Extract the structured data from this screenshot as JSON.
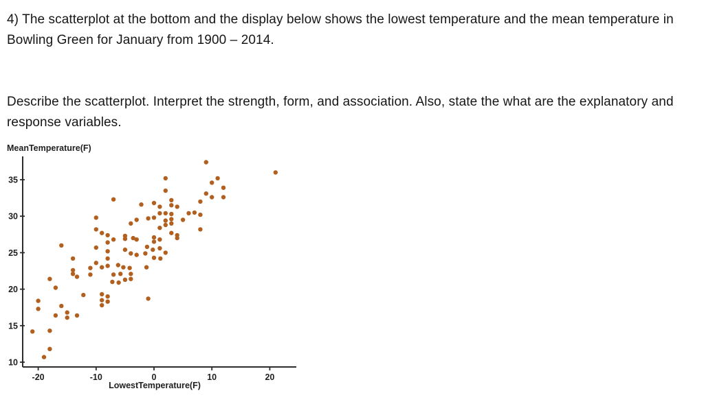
{
  "question": {
    "part1": "4) The scatterplot at the bottom and the display below shows the lowest temperature and the mean temperature in Bowling Green for January from 1900 – 2014.",
    "part2": "Describe the scatterplot. Interpret the strength, form, and association. Also, state the what are the explanatory and response variables."
  },
  "chart_data": {
    "type": "scatter",
    "title": "",
    "xlabel": "LowestTemperature(F)",
    "ylabel": "MeanTemperature(F)",
    "xlim": [
      -22.7,
      24.5
    ],
    "ylim": [
      9.3,
      38.2
    ],
    "x_ticks": [
      -20,
      -10,
      0,
      10,
      20
    ],
    "y_ticks": [
      10,
      15,
      20,
      25,
      30,
      35
    ],
    "grid": false,
    "legend": "none",
    "point_color": "#b2601f",
    "axis_color": "#2b2b2b",
    "points": [
      [
        -21,
        14.2
      ],
      [
        -20,
        18.4
      ],
      [
        -20,
        17.3
      ],
      [
        -19,
        10.7
      ],
      [
        -18,
        11.8
      ],
      [
        -18,
        14.3
      ],
      [
        -18,
        21.4
      ],
      [
        -17,
        20.2
      ],
      [
        -17,
        16.4
      ],
      [
        -16,
        26.0
      ],
      [
        -16,
        17.7
      ],
      [
        -15,
        16.8
      ],
      [
        -15,
        16.1
      ],
      [
        -14,
        24.2
      ],
      [
        -14,
        22.6
      ],
      [
        -14,
        22.1
      ],
      [
        -13.3,
        21.7
      ],
      [
        -13.3,
        16.4
      ],
      [
        -12.2,
        19.2
      ],
      [
        -11,
        22.9
      ],
      [
        -11,
        22.0
      ],
      [
        -10,
        29.8
      ],
      [
        -10,
        28.2
      ],
      [
        -10,
        25.7
      ],
      [
        -10,
        23.6
      ],
      [
        -9,
        27.7
      ],
      [
        -9,
        23.0
      ],
      [
        -9,
        19.3
      ],
      [
        -9,
        18.5
      ],
      [
        -9,
        17.8
      ],
      [
        -8,
        27.4
      ],
      [
        -8,
        26.4
      ],
      [
        -8,
        25.2
      ],
      [
        -8,
        24.2
      ],
      [
        -8,
        23.2
      ],
      [
        -8,
        19.0
      ],
      [
        -8,
        18.3
      ],
      [
        -7,
        32.3
      ],
      [
        -7,
        26.8
      ],
      [
        -7,
        22.0
      ],
      [
        -7.2,
        21.0
      ],
      [
        -6.1,
        20.9
      ],
      [
        -6.2,
        23.3
      ],
      [
        -5.8,
        22.1
      ],
      [
        -5,
        27.3
      ],
      [
        -5,
        26.9
      ],
      [
        -5,
        25.4
      ],
      [
        -5.3,
        23.0
      ],
      [
        -5,
        21.3
      ],
      [
        -4,
        29.0
      ],
      [
        -3.6,
        27.0
      ],
      [
        -4,
        24.9
      ],
      [
        -4.2,
        22.9
      ],
      [
        -4,
        22.1
      ],
      [
        -4,
        21.4
      ],
      [
        -3,
        29.5
      ],
      [
        -3,
        26.8
      ],
      [
        -3,
        24.7
      ],
      [
        -2.2,
        31.6
      ],
      [
        -1,
        29.7
      ],
      [
        -1.2,
        25.8
      ],
      [
        -1.5,
        24.9
      ],
      [
        -1.3,
        23.0
      ],
      [
        -1,
        18.7
      ],
      [
        0,
        31.8
      ],
      [
        0,
        29.8
      ],
      [
        0,
        27.1
      ],
      [
        0,
        26.5
      ],
      [
        -0.2,
        25.4
      ],
      [
        0,
        24.3
      ],
      [
        1,
        31.3
      ],
      [
        1,
        30.4
      ],
      [
        1,
        28.4
      ],
      [
        1,
        26.8
      ],
      [
        1,
        25.6
      ],
      [
        1.1,
        24.2
      ],
      [
        2,
        35.2
      ],
      [
        2,
        33.5
      ],
      [
        2,
        30.4
      ],
      [
        2,
        29.4
      ],
      [
        2,
        28.8
      ],
      [
        2,
        25.0
      ],
      [
        3,
        32.2
      ],
      [
        3,
        31.5
      ],
      [
        3,
        30.3
      ],
      [
        3,
        29.6
      ],
      [
        3,
        29.0
      ],
      [
        3,
        27.7
      ],
      [
        4,
        31.3
      ],
      [
        4,
        27.4
      ],
      [
        4,
        27.0
      ],
      [
        5,
        29.5
      ],
      [
        6,
        30.4
      ],
      [
        7,
        30.5
      ],
      [
        8,
        32.0
      ],
      [
        8,
        30.2
      ],
      [
        8,
        28.2
      ],
      [
        9,
        37.4
      ],
      [
        9,
        33.1
      ],
      [
        10,
        34.6
      ],
      [
        10,
        32.6
      ],
      [
        11,
        35.2
      ],
      [
        12,
        33.9
      ],
      [
        12,
        32.6
      ],
      [
        21,
        36.0
      ]
    ]
  }
}
